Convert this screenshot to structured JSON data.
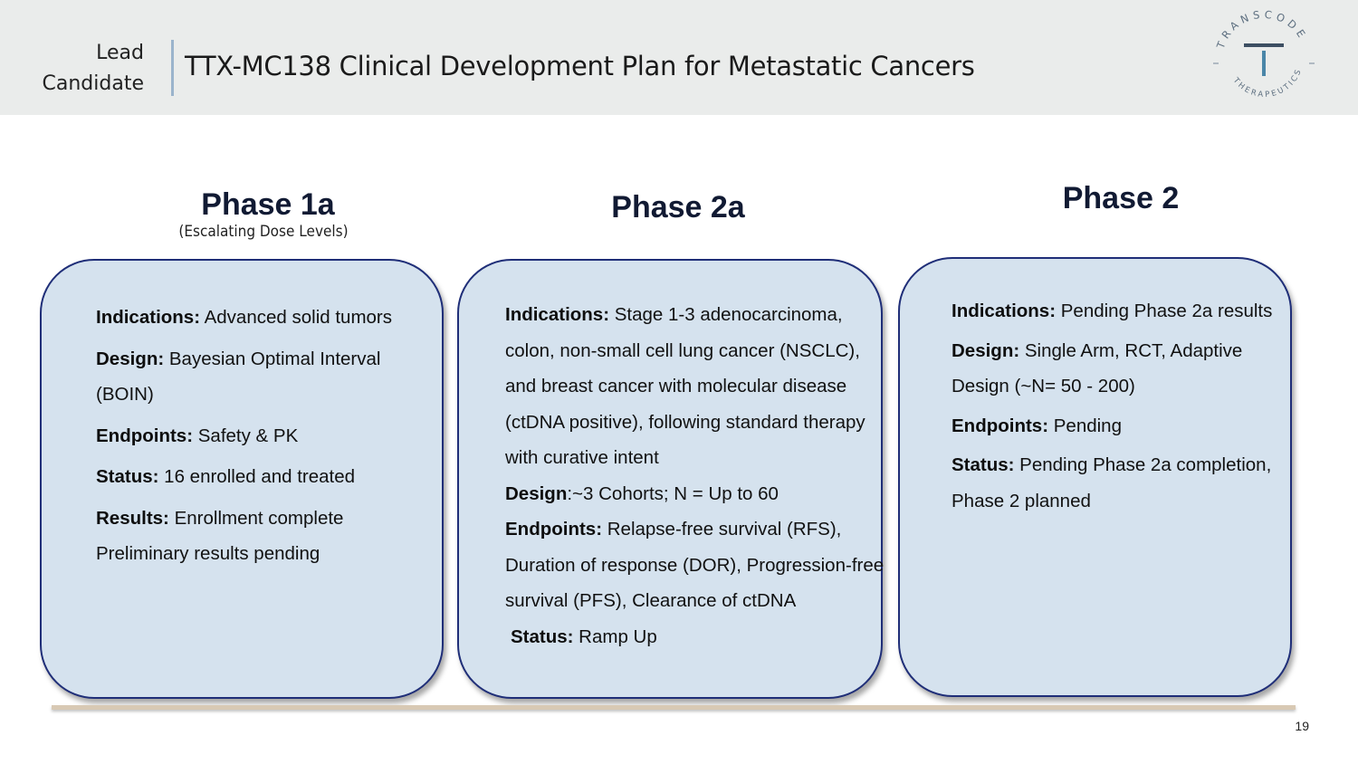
{
  "header": {
    "section_label_line1": "Lead",
    "section_label_line2": "Candidate",
    "title": "TTX-MC138 Clinical Development Plan for Metastatic Cancers",
    "logo": {
      "arc_top": "TRANSCODE",
      "arc_bottom": "THERAPEUTICS",
      "monogram": "T",
      "colors": {
        "text": "#5d6f80",
        "monogram": "#4a86a8"
      }
    }
  },
  "phases": [
    {
      "title": "Phase 1a",
      "subtitle": "(Escalating Dose Levels)",
      "rows": [
        {
          "label": "Indications:",
          "text": " Advanced solid tumors"
        },
        {
          "label": "Design:",
          "text": " Bayesian Optimal Interval (BOIN)"
        },
        {
          "label": "Endpoints:",
          "text": " Safety & PK"
        },
        {
          "label": "Status:",
          "text": " 16 enrolled and treated"
        },
        {
          "label": "Results:",
          "text": " Enrollment complete Preliminary results pending"
        }
      ]
    },
    {
      "title": "Phase 2a",
      "rows": [
        {
          "label": "Indications:",
          "text": " Stage 1-3 adenocarcinoma, colon, non-small cell lung cancer (NSCLC), and breast cancer with molecular disease (ctDNA positive), following standard therapy with curative intent"
        },
        {
          "label": "Design",
          "text": ":~3 Cohorts; N = Up to 60"
        },
        {
          "label": "Endpoints:",
          "text": " Relapse-free survival (RFS), Duration of response (DOR), Progression-free survival (PFS), Clearance of ctDNA"
        },
        {
          "label": "Status:",
          "text": " Ramp Up"
        }
      ]
    },
    {
      "title": "Phase 2",
      "rows": [
        {
          "label": "Indications:",
          "text": " Pending Phase 2a results"
        },
        {
          "label": "Design:",
          "text": " Single Arm, RCT, Adaptive Design (~N= 50 - 200)"
        },
        {
          "label": "Endpoints:",
          "text": " Pending"
        },
        {
          "label": "Status:",
          "text": " Pending Phase 2a completion, Phase 2 planned"
        }
      ]
    }
  ],
  "footer": {
    "page_number": "19"
  },
  "colors": {
    "header_band": "#eaeceb",
    "card_fill": "#d5e2ee",
    "card_border": "#1f2e78",
    "phase_title": "#111a33",
    "timeline": "#d8c9b4"
  }
}
